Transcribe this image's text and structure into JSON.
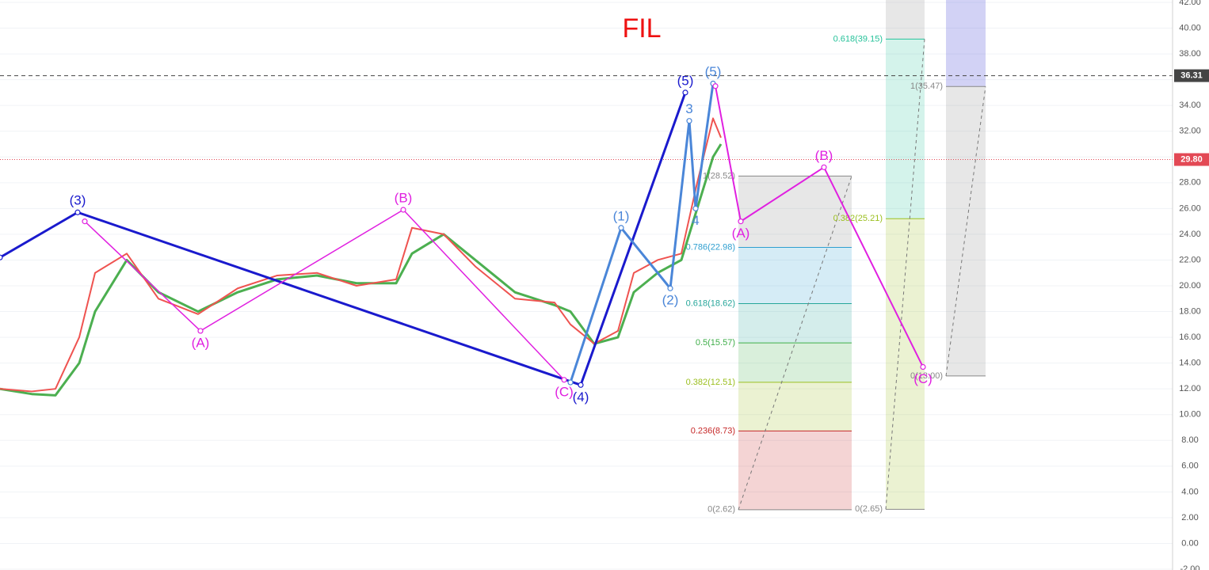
{
  "chart_data": {
    "type": "line",
    "title": "FIL",
    "xlim": [
      0,
      1480
    ],
    "ylim": [
      -2,
      42
    ],
    "yticks": [
      {
        "value": -2,
        "label": "-2.00"
      },
      {
        "value": 0,
        "label": "0.00"
      },
      {
        "value": 2,
        "label": "2.00"
      },
      {
        "value": 4,
        "label": "4.00"
      },
      {
        "value": 6,
        "label": "6.00"
      },
      {
        "value": 8,
        "label": "8.00"
      },
      {
        "value": 10,
        "label": "10.00"
      },
      {
        "value": 12,
        "label": "12.00"
      },
      {
        "value": 14,
        "label": "14.00"
      },
      {
        "value": 16,
        "label": "16.00"
      },
      {
        "value": 18,
        "label": "18.00"
      },
      {
        "value": 20,
        "label": "20.00"
      },
      {
        "value": 22,
        "label": "22.00"
      },
      {
        "value": 24,
        "label": "24.00"
      },
      {
        "value": 26,
        "label": "26.00"
      },
      {
        "value": 28,
        "label": "28.00"
      },
      {
        "value": 30,
        "label": "30.00"
      },
      {
        "value": 32,
        "label": "32.00"
      },
      {
        "value": 34,
        "label": "34.00"
      },
      {
        "value": 36,
        "label": "36.00"
      },
      {
        "value": 38,
        "label": "38.00"
      },
      {
        "value": 40,
        "label": "40.00"
      },
      {
        "value": 42,
        "label": "42.00"
      }
    ],
    "grid": true,
    "price_lines": [
      {
        "value": 36.31,
        "label": "36.31",
        "color": "#444444",
        "style": "dashed"
      },
      {
        "value": 29.8,
        "label": "29.80",
        "color": "#e34955",
        "style": "dotted"
      }
    ],
    "series": [
      {
        "color": "#4caf50",
        "width": 3,
        "x": [
          0,
          40,
          70,
          100,
          120,
          160,
          200,
          250,
          300,
          350,
          400,
          450,
          500,
          520,
          560,
          600,
          650,
          700,
          720,
          750,
          780,
          800,
          830,
          860,
          880,
          900,
          910
        ],
        "values": [
          12,
          11.6,
          11.5,
          14,
          18,
          22,
          19.5,
          18,
          19.5,
          20.5,
          20.8,
          20.2,
          20.2,
          22.5,
          24,
          22,
          19.5,
          18.5,
          18,
          15.5,
          16,
          19.5,
          21,
          22,
          26,
          30,
          31
        ]
      },
      {
        "color": "#ef5350",
        "width": 2,
        "x": [
          0,
          40,
          70,
          100,
          120,
          160,
          200,
          250,
          300,
          350,
          400,
          450,
          500,
          520,
          560,
          600,
          650,
          700,
          720,
          750,
          780,
          800,
          830,
          860,
          880,
          900,
          910
        ],
        "values": [
          12,
          11.8,
          12,
          16,
          21,
          22.5,
          19,
          17.8,
          19.8,
          20.8,
          21,
          20,
          20.5,
          24.5,
          24,
          21.5,
          19,
          18.7,
          17,
          15.5,
          16.5,
          21,
          22,
          22.5,
          28,
          33,
          31.5
        ]
      },
      {
        "color": "#1a1acd",
        "width": 3,
        "x": [
          0,
          98,
          733,
          865
        ],
        "values": [
          22.2,
          25.7,
          12.3,
          35.0
        ],
        "point_labels": [
          null,
          "(3)",
          "(4)",
          "(5)"
        ]
      },
      {
        "color": "#e020e0",
        "width": 1.5,
        "x": [
          107,
          253,
          509,
          712
        ],
        "values": [
          25.0,
          16.5,
          25.9,
          12.7
        ],
        "point_labels": [
          null,
          "(A)",
          "(B)",
          "(C)"
        ]
      },
      {
        "color": "#4a86d8",
        "width": 3,
        "x": [
          720,
          784,
          846,
          870,
          878,
          900
        ],
        "values": [
          12.5,
          24.5,
          19.8,
          32.8,
          26.0,
          35.7
        ],
        "point_labels": [
          null,
          "(1)",
          "(2)",
          "3",
          "4",
          "(5)"
        ]
      },
      {
        "color": "#e020e0",
        "width": 2,
        "x": [
          903,
          935,
          1040,
          1165
        ],
        "values": [
          35.5,
          25.0,
          29.2,
          13.7
        ],
        "point_labels": [
          null,
          "(A)",
          "(B)",
          "(C)"
        ]
      }
    ],
    "fibs": [
      {
        "x": [
          932,
          1075
        ],
        "levels": [
          {
            "value": 2.62,
            "label": "0(2.62)",
            "color": "#888888"
          },
          {
            "value": 8.73,
            "label": "0.236(8.73)",
            "color": "#c62828"
          },
          {
            "value": 12.51,
            "label": "0.382(12.51)",
            "color": "#9bbf1f"
          },
          {
            "value": 15.57,
            "label": "0.5(15.57)",
            "color": "#3fae49"
          },
          {
            "value": 18.62,
            "label": "0.618(18.62)",
            "color": "#26a69a"
          },
          {
            "value": 22.98,
            "label": "0.786(22.98)",
            "color": "#2f9fd0"
          },
          {
            "value": 28.52,
            "label": "1(28.52)",
            "color": "#888888"
          }
        ]
      },
      {
        "x": [
          1118,
          1167
        ],
        "top_color": "#9e9e9e",
        "levels": [
          {
            "value": 2.65,
            "label": "0(2.65)",
            "color": "#888888"
          },
          {
            "value": 25.21,
            "label": "0.382(25.21)",
            "color": "#9bbf1f"
          },
          {
            "value": 39.15,
            "label": "0.618(39.15)",
            "color": "#26c29a"
          }
        ]
      },
      {
        "x": [
          1194,
          1244
        ],
        "top_color": "#4b4bd8",
        "levels": [
          {
            "value": 13.0,
            "label": "0(13.00)",
            "color": "#888888"
          },
          {
            "value": 35.47,
            "label": "1(35.47)",
            "color": "#888888"
          }
        ]
      }
    ]
  }
}
